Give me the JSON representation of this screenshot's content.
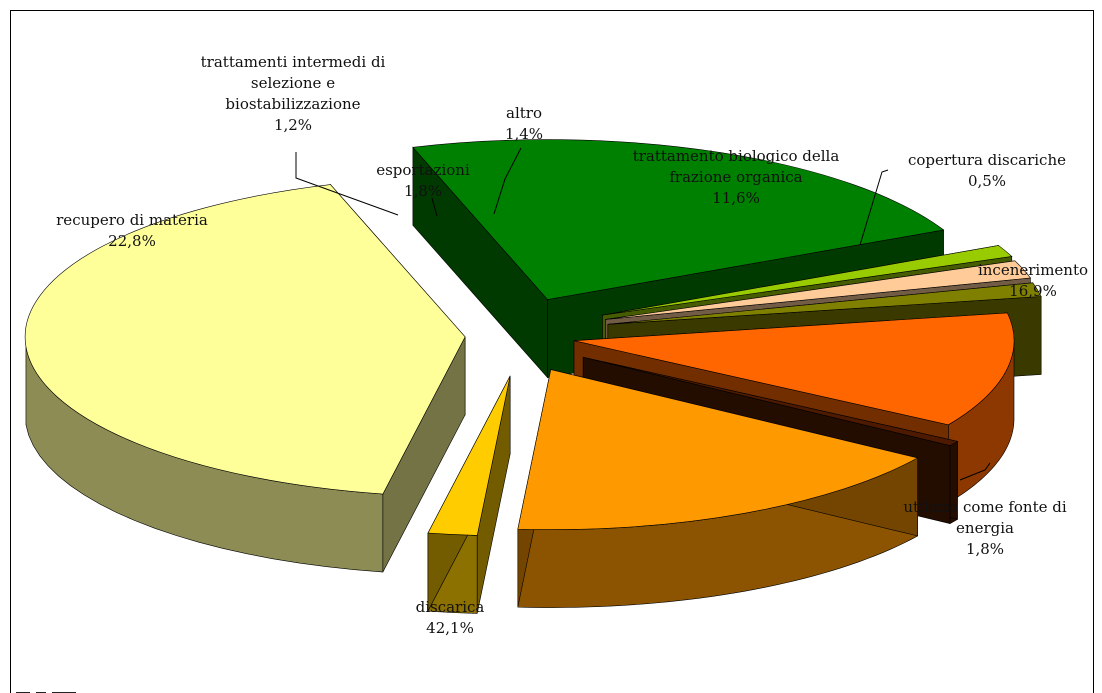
{
  "chart_data": {
    "type": "pie",
    "title": "",
    "slices": [
      {
        "name": "trattamento biologico della frazione organica",
        "value": 11.6,
        "label": "11,6%",
        "color": "#ff6600"
      },
      {
        "name": "copertura discariche",
        "value": 0.5,
        "label": "0,5%",
        "color": "#4d1a00"
      },
      {
        "name": "incenerimento",
        "value": 16.9,
        "label": "16,9%",
        "color": "#ff9900"
      },
      {
        "name": "utilizzo come fonte di energia",
        "value": 1.8,
        "label": "1,8%",
        "color": "#ffcc00"
      },
      {
        "name": "discarica",
        "value": 42.1,
        "label": "42,1%",
        "color": "#ffff99"
      },
      {
        "name": "recupero di materia",
        "value": 22.8,
        "label": "22,8%",
        "color": "#008000"
      },
      {
        "name": "trattamenti intermedi di selezione e biostabilizzazione",
        "value": 1.2,
        "label": "1,2%",
        "color": "#99cc00"
      },
      {
        "name": "esportazioni",
        "value": 1.8,
        "label": "1,8%",
        "color": "#ffcc99"
      },
      {
        "name": "altro",
        "value": 1.4,
        "label": "1,4%",
        "color": "#808000"
      }
    ],
    "legend": "none",
    "style": "3d-exploded"
  },
  "labels": {
    "trattamento": [
      "trattamento biologico della",
      "frazione organica",
      "11,6%"
    ],
    "copertura": [
      "copertura discariche",
      "0,5%"
    ],
    "incenerimento": [
      "incenerimento",
      "16,9%"
    ],
    "utilizzo": [
      "utilizzo come fonte di",
      "energia",
      "1,8%"
    ],
    "discarica": [
      "discarica",
      "42,1%"
    ],
    "recupero": [
      "recupero di materia",
      "22,8%"
    ],
    "intermedi": [
      "trattamenti intermedi di",
      "selezione e",
      "biostabilizzazione",
      "1,2%"
    ],
    "esportazioni": [
      "esportazioni",
      "1,8%"
    ],
    "altro": [
      "altro",
      "1,4%"
    ]
  }
}
